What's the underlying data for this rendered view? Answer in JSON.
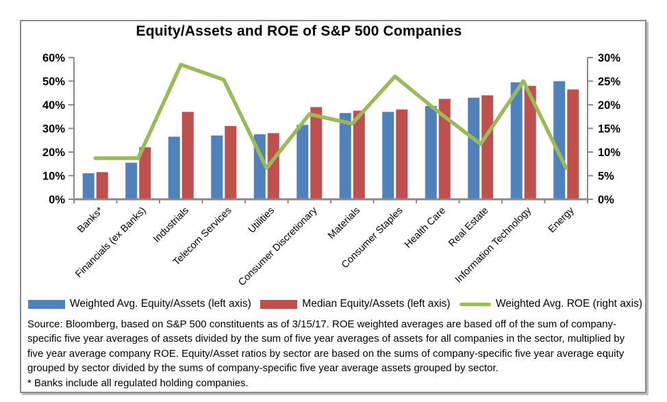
{
  "figure": {
    "title": "Equity/Assets and ROE of S&P 500 Companies",
    "source_text": "Source: Bloomberg, based on S&P 500 constituents as of 3/15/17. ROE weighted averages are based off of the sum of company-specific five year averages of assets divided by the sum of five year averages of assets for all companies in the sector, multiplied by five year average company ROE. Equity/Asset ratios by sector are based on the sums of company-specific five year average equity grouped by sector divided by the sums of company-specific five year average assets grouped by sector.",
    "footnote": "* Banks include all regulated holding companies."
  },
  "chart_data": {
    "type": "bar",
    "subtype": "grouped bars with overlay line, dual axis",
    "title": "Equity/Assets and ROE of S&P 500 Companies",
    "categories": [
      "Banks*",
      "Financials (ex Banks)",
      "Industrials",
      "Telecom Services",
      "Utilities",
      "Consumer Discretionary",
      "Materials",
      "Consumer Staples",
      "Health Care",
      "Real Estate",
      "Information Technology",
      "Energy"
    ],
    "series": [
      {
        "name": "Weighted Avg. Equity/Assets (left axis)",
        "type": "bar",
        "axis": "left",
        "color": "#4F81BD",
        "values": [
          11,
          15.5,
          26.5,
          27,
          27.5,
          31.5,
          36.5,
          37,
          39.5,
          43,
          49.5,
          50
        ]
      },
      {
        "name": "Median Equity/Assets (left axis)",
        "type": "bar",
        "axis": "left",
        "color": "#C0504D",
        "values": [
          11.5,
          22,
          37,
          31,
          28,
          39,
          37.5,
          38,
          42.5,
          44,
          48,
          46.5
        ]
      },
      {
        "name": "Weighted Avg. ROE (right axis)",
        "type": "line",
        "axis": "right",
        "color": "#9BBB59",
        "values": [
          8.7,
          8.7,
          28.5,
          25.3,
          6.6,
          18,
          16,
          26,
          18.6,
          11.7,
          25,
          6.6
        ]
      }
    ],
    "left_axis": {
      "min": 0,
      "max": 60,
      "step": 10,
      "ticks": [
        "0%",
        "10%",
        "20%",
        "30%",
        "40%",
        "50%",
        "60%"
      ]
    },
    "right_axis": {
      "min": 0,
      "max": 30,
      "step": 5,
      "ticks": [
        "0%",
        "5%",
        "10%",
        "15%",
        "20%",
        "25%",
        "30%"
      ]
    },
    "grid": false,
    "legend_position": "bottom",
    "axis_color": "#898989"
  }
}
